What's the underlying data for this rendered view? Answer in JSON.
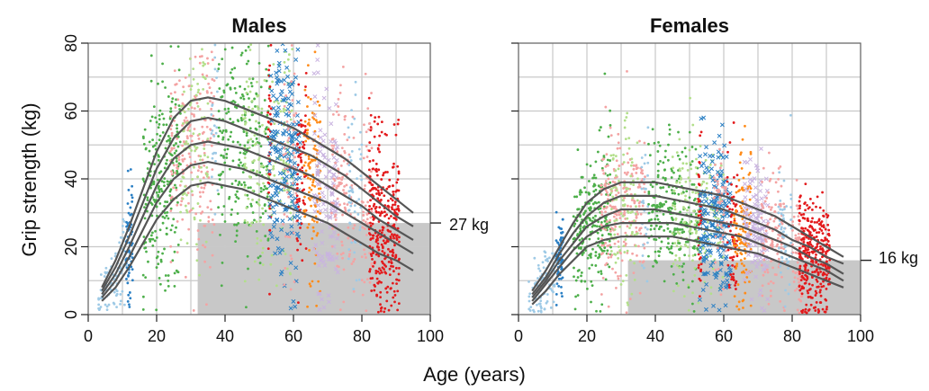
{
  "chart_data": {
    "type": "scatter",
    "shared_xlabel": "Age (years)",
    "shared_ylabel": "Grip strength (kg)",
    "xlim": [
      0,
      100
    ],
    "ylim": [
      0,
      80
    ],
    "xticks": [
      0,
      20,
      40,
      60,
      80,
      100
    ],
    "yticks": [
      0,
      20,
      40,
      60,
      80
    ],
    "grid": true,
    "panels": [
      {
        "title": "Males",
        "threshold_label": "27 kg",
        "threshold_value": 27,
        "threshold_from_age": 32,
        "centile_curves": [
          {
            "x": [
              4,
              8,
              12,
              16,
              20,
              25,
              30,
              35,
              40,
              45,
              50,
              55,
              60,
              65,
              70,
              75,
              80,
              85,
              90,
              95
            ],
            "y": [
              8,
              16,
              26,
              37,
              48,
              58,
              63,
              64,
              63,
              61,
              59,
              57,
              55,
              52,
              49,
              46,
              42,
              38,
              34,
              30
            ]
          },
          {
            "x": [
              4,
              8,
              12,
              16,
              20,
              25,
              30,
              35,
              40,
              45,
              50,
              55,
              60,
              65,
              70,
              75,
              80,
              85,
              90,
              95
            ],
            "y": [
              7,
              14,
              23,
              33,
              43,
              52,
              57,
              58,
              57,
              55,
              53,
              51,
              49,
              47,
              44,
              41,
              37,
              33,
              29,
              26
            ]
          },
          {
            "x": [
              4,
              8,
              12,
              16,
              20,
              25,
              30,
              35,
              40,
              45,
              50,
              55,
              60,
              65,
              70,
              75,
              80,
              85,
              90,
              95
            ],
            "y": [
              6,
              12,
              20,
              29,
              38,
              46,
              50,
              51,
              50,
              49,
              47,
              45,
              43,
              41,
              38,
              35,
              32,
              28,
              25,
              22
            ]
          },
          {
            "x": [
              4,
              8,
              12,
              16,
              20,
              25,
              30,
              35,
              40,
              45,
              50,
              55,
              60,
              65,
              70,
              75,
              80,
              85,
              90,
              95
            ],
            "y": [
              5,
              10,
              17,
              25,
              33,
              40,
              44,
              45,
              44,
              43,
              41,
              39,
              37,
              35,
              33,
              30,
              27,
              24,
              21,
              18
            ]
          },
          {
            "x": [
              4,
              8,
              12,
              16,
              20,
              25,
              30,
              35,
              40,
              45,
              50,
              55,
              60,
              65,
              70,
              75,
              80,
              85,
              90,
              95
            ],
            "y": [
              4,
              8,
              14,
              21,
              28,
              34,
              38,
              39,
              38,
              37,
              35,
              33,
              31,
              29,
              27,
              24,
              21,
              18,
              16,
              13
            ]
          }
        ]
      },
      {
        "title": "Females",
        "threshold_label": "16 kg",
        "threshold_value": 16,
        "threshold_from_age": 32,
        "centile_curves": [
          {
            "x": [
              4,
              8,
              12,
              16,
              20,
              25,
              30,
              35,
              40,
              45,
              50,
              55,
              60,
              65,
              70,
              75,
              80,
              85,
              90,
              95
            ],
            "y": [
              7,
              13,
              20,
              27,
              33,
              37,
              39,
              39,
              39,
              38,
              37,
              36,
              35,
              33,
              31,
              29,
              26,
              23,
              20,
              17
            ]
          },
          {
            "x": [
              4,
              8,
              12,
              16,
              20,
              25,
              30,
              35,
              40,
              45,
              50,
              55,
              60,
              65,
              70,
              75,
              80,
              85,
              90,
              95
            ],
            "y": [
              6,
              11,
              18,
              24,
              29,
              33,
              35,
              35,
              35,
              34,
              33,
              32,
              31,
              29,
              27,
              25,
              22,
              20,
              17,
              15
            ]
          },
          {
            "x": [
              4,
              8,
              12,
              16,
              20,
              25,
              30,
              35,
              40,
              45,
              50,
              55,
              60,
              65,
              70,
              75,
              80,
              85,
              90,
              95
            ],
            "y": [
              5,
              10,
              16,
              21,
              26,
              29,
              31,
              31,
              31,
              30,
              29,
              28,
              27,
              26,
              24,
              22,
              20,
              17,
              15,
              12
            ]
          },
          {
            "x": [
              4,
              8,
              12,
              16,
              20,
              25,
              30,
              35,
              40,
              45,
              50,
              55,
              60,
              65,
              70,
              75,
              80,
              85,
              90,
              95
            ],
            "y": [
              4,
              9,
              14,
              19,
              23,
              26,
              27,
              27,
              27,
              27,
              26,
              25,
              24,
              23,
              21,
              19,
              17,
              15,
              13,
              10
            ]
          },
          {
            "x": [
              4,
              8,
              12,
              16,
              20,
              25,
              30,
              35,
              40,
              45,
              50,
              55,
              60,
              65,
              70,
              75,
              80,
              85,
              90,
              95
            ],
            "y": [
              3,
              7,
              12,
              16,
              20,
              22,
              23,
              23,
              23,
              23,
              22,
              21,
              20,
              19,
              18,
              16,
              14,
              12,
              10,
              8
            ]
          }
        ]
      }
    ],
    "point_colors": {
      "blue": "#2a7fc4",
      "light_blue": "#9ecae6",
      "green": "#4daf4a",
      "light_green": "#b2df8a",
      "pink": "#f4a3a3",
      "orange": "#ff8c1a",
      "lavender": "#c9b3e0",
      "red": "#e31a1c",
      "curve": "#555555",
      "threshold_band": "#c8c8c8"
    }
  }
}
